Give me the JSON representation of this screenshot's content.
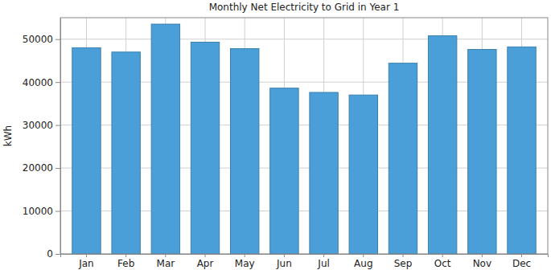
{
  "chart_data": {
    "type": "bar",
    "title": "Monthly Net Electricity to Grid in Year 1",
    "y_label": "kWh",
    "categories": [
      "Jan",
      "Feb",
      "Mar",
      "Apr",
      "May",
      "Jun",
      "Jul",
      "Aug",
      "Sep",
      "Oct",
      "Nov",
      "Dec"
    ],
    "values": [
      48000,
      47000,
      53500,
      49300,
      47800,
      38600,
      37600,
      37000,
      44400,
      50800,
      47600,
      48200
    ],
    "color": "#4a9fd8",
    "ylim": [
      0,
      55000
    ],
    "yticks": [
      0,
      10000,
      20000,
      30000,
      40000,
      50000
    ],
    "grid": true
  }
}
